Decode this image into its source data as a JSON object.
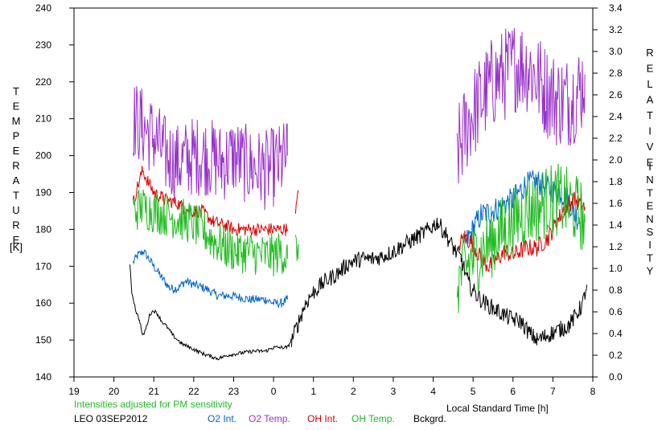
{
  "chart_data": {
    "type": "line",
    "xlabel": "Local Standard Time [h]",
    "x_ticks": [
      "19",
      "20",
      "21",
      "22",
      "23",
      "0",
      "1",
      "2",
      "3",
      "4",
      "5",
      "6",
      "7",
      "8"
    ],
    "x_range_hours": [
      19,
      32
    ],
    "y_left": {
      "label_letters": [
        "T",
        "E",
        "M",
        "P",
        "E",
        "R",
        "A",
        "T",
        "U",
        "R",
        "E"
      ],
      "unit": "[K]",
      "range": [
        140,
        240
      ],
      "ticks": [
        "140",
        "150",
        "160",
        "170",
        "180",
        "190",
        "200",
        "210",
        "220",
        "230",
        "240"
      ]
    },
    "y_right": {
      "label_letters": [
        "R",
        "E",
        "L",
        "A",
        "T",
        "I",
        "V",
        "E"
      ],
      "label_letters_2": [
        "I",
        "N",
        "T",
        "E",
        "N",
        "S",
        "I",
        "T",
        "Y"
      ],
      "range": [
        0.0,
        3.4
      ],
      "ticks": [
        "0.0",
        "0.2",
        "0.4",
        "0.6",
        "0.8",
        "1.0",
        "1.2",
        "1.4",
        "1.6",
        "1.8",
        "2.0",
        "2.2",
        "2.4",
        "2.6",
        "2.8",
        "3.0",
        "3.2",
        "3.4"
      ]
    },
    "note": "Intensities adjusted for PM sensitivity",
    "station": "LEO 03SEP2012",
    "series": [
      {
        "name": "O2 Int.",
        "axis": "temperature",
        "color": "#0066cc",
        "noise": 1.2,
        "points": [
          [
            20.48,
            171
          ],
          [
            20.6,
            173
          ],
          [
            20.75,
            174
          ],
          [
            21.0,
            170
          ],
          [
            21.2,
            167
          ],
          [
            21.4,
            164
          ],
          [
            21.6,
            164
          ],
          [
            21.8,
            166
          ],
          [
            22.0,
            165
          ],
          [
            22.3,
            164
          ],
          [
            22.6,
            162
          ],
          [
            23.0,
            162
          ],
          [
            23.4,
            161
          ],
          [
            23.8,
            161
          ],
          [
            24.0,
            160
          ],
          [
            24.2,
            160
          ],
          [
            24.35,
            161
          ]
        ]
      },
      {
        "name": "O2 Int.",
        "axis": "temperature",
        "color": "#0066cc",
        "noise": 3.5,
        "points": [
          [
            28.8,
            176
          ],
          [
            29.0,
            180
          ],
          [
            29.2,
            184
          ],
          [
            29.5,
            185
          ],
          [
            29.8,
            187
          ],
          [
            30.0,
            188
          ],
          [
            30.3,
            192
          ],
          [
            30.6,
            193
          ],
          [
            30.9,
            191
          ],
          [
            31.2,
            190
          ],
          [
            31.4,
            188
          ],
          [
            31.55,
            184
          ],
          [
            31.7,
            182
          ]
        ]
      },
      {
        "name": "O2 Temp.",
        "axis": "temperature",
        "color": "#9933cc",
        "noise": 11,
        "points": [
          [
            20.48,
            210
          ],
          [
            20.7,
            208
          ],
          [
            21.0,
            205
          ],
          [
            21.3,
            200
          ],
          [
            21.6,
            198
          ],
          [
            22.0,
            200
          ],
          [
            22.3,
            200
          ],
          [
            22.7,
            198
          ],
          [
            23.0,
            200
          ],
          [
            23.4,
            197
          ],
          [
            23.8,
            196
          ],
          [
            24.0,
            197
          ],
          [
            24.2,
            198
          ],
          [
            24.35,
            200
          ]
        ]
      },
      {
        "name": "O2 Temp.",
        "axis": "temperature",
        "color": "#9933cc",
        "noise": 13,
        "points": [
          [
            28.6,
            200
          ],
          [
            28.9,
            210
          ],
          [
            29.2,
            215
          ],
          [
            29.5,
            220
          ],
          [
            29.8,
            222
          ],
          [
            30.1,
            225
          ],
          [
            30.4,
            224
          ],
          [
            30.8,
            218
          ],
          [
            31.1,
            215
          ],
          [
            31.4,
            215
          ],
          [
            31.7,
            218
          ],
          [
            31.8,
            222
          ]
        ]
      },
      {
        "name": "OH Int.",
        "axis": "temperature",
        "color": "#dd0000",
        "noise": 1.8,
        "points": [
          [
            20.48,
            187
          ],
          [
            20.6,
            192
          ],
          [
            20.72,
            196
          ],
          [
            20.85,
            193
          ],
          [
            21.0,
            190
          ],
          [
            21.3,
            188
          ],
          [
            21.6,
            187
          ],
          [
            21.9,
            185
          ],
          [
            22.2,
            185
          ],
          [
            22.5,
            182
          ],
          [
            22.8,
            181
          ],
          [
            23.0,
            180
          ],
          [
            23.3,
            180
          ],
          [
            23.6,
            180
          ],
          [
            23.9,
            180
          ],
          [
            24.1,
            180
          ],
          [
            24.3,
            180
          ],
          [
            24.35,
            180
          ]
        ]
      },
      {
        "name": "OH Int.",
        "axis": "temperature",
        "color": "#dd0000",
        "noise": 0.8,
        "points": [
          [
            24.55,
            185
          ],
          [
            24.6,
            189
          ],
          [
            24.62,
            190
          ]
        ]
      },
      {
        "name": "OH Int.",
        "axis": "temperature",
        "color": "#dd0000",
        "noise": 2.5,
        "points": [
          [
            28.65,
            176
          ],
          [
            28.8,
            178
          ],
          [
            29.0,
            176
          ],
          [
            29.2,
            172
          ],
          [
            29.4,
            170
          ],
          [
            29.6,
            172
          ],
          [
            29.8,
            174
          ],
          [
            30.0,
            173
          ],
          [
            30.3,
            175
          ],
          [
            30.6,
            175
          ],
          [
            30.9,
            178
          ],
          [
            31.1,
            182
          ],
          [
            31.3,
            186
          ],
          [
            31.5,
            188
          ],
          [
            31.7,
            187
          ],
          [
            31.8,
            186
          ]
        ]
      },
      {
        "name": "OH Temp.",
        "axis": "temperature",
        "color": "#22bb22",
        "noise": 6,
        "points": [
          [
            20.48,
            185
          ],
          [
            20.7,
            186
          ],
          [
            21.0,
            185
          ],
          [
            21.3,
            184
          ],
          [
            21.6,
            183
          ],
          [
            21.9,
            182
          ],
          [
            22.2,
            180
          ],
          [
            22.5,
            177
          ],
          [
            22.8,
            175
          ],
          [
            23.1,
            174
          ],
          [
            23.4,
            174
          ],
          [
            23.7,
            173
          ],
          [
            24.0,
            173
          ],
          [
            24.2,
            174
          ],
          [
            24.35,
            172
          ]
        ]
      },
      {
        "name": "OH Temp.",
        "axis": "temperature",
        "color": "#22bb22",
        "noise": 4,
        "points": [
          [
            24.55,
            176
          ],
          [
            24.6,
            174
          ],
          [
            24.62,
            172
          ]
        ]
      },
      {
        "name": "OH Temp.",
        "axis": "temperature",
        "color": "#22bb22",
        "noise": 10,
        "points": [
          [
            28.6,
            165
          ],
          [
            28.8,
            170
          ],
          [
            29.0,
            172
          ],
          [
            29.2,
            174
          ],
          [
            29.4,
            176
          ],
          [
            29.6,
            178
          ],
          [
            29.8,
            180
          ],
          [
            30.0,
            182
          ],
          [
            30.3,
            185
          ],
          [
            30.6,
            186
          ],
          [
            30.9,
            188
          ],
          [
            31.2,
            188
          ],
          [
            31.5,
            186
          ],
          [
            31.7,
            184
          ],
          [
            31.8,
            182
          ]
        ]
      },
      {
        "name": "Bckgrd.",
        "axis": "temperature",
        "color": "#000000",
        "noise": 0.5,
        "points": [
          [
            20.4,
            170
          ],
          [
            20.45,
            163
          ],
          [
            20.55,
            158
          ],
          [
            20.65,
            155
          ],
          [
            20.72,
            151
          ],
          [
            20.8,
            153
          ],
          [
            20.9,
            157
          ],
          [
            21.0,
            158
          ],
          [
            21.1,
            157
          ],
          [
            21.2,
            155
          ],
          [
            21.3,
            154
          ],
          [
            21.5,
            151
          ],
          [
            21.7,
            149
          ],
          [
            21.9,
            148
          ],
          [
            22.1,
            147
          ],
          [
            22.3,
            146
          ],
          [
            22.6,
            145
          ],
          [
            22.9,
            146
          ],
          [
            23.2,
            146.5
          ],
          [
            23.5,
            147
          ],
          [
            23.8,
            147
          ],
          [
            24.0,
            148
          ],
          [
            24.2,
            148
          ],
          [
            24.35,
            148
          ],
          [
            24.45,
            150
          ]
        ]
      },
      {
        "name": "Bckgrd.",
        "axis": "temperature",
        "color": "#000000",
        "noise": 2.3,
        "points": [
          [
            24.45,
            150
          ],
          [
            24.6,
            154
          ],
          [
            24.8,
            160
          ],
          [
            25.0,
            163
          ],
          [
            25.3,
            166
          ],
          [
            25.6,
            168
          ],
          [
            25.9,
            171
          ],
          [
            26.2,
            172
          ],
          [
            26.5,
            172
          ],
          [
            26.8,
            173
          ],
          [
            27.0,
            174
          ],
          [
            27.3,
            176
          ],
          [
            27.6,
            178
          ],
          [
            27.9,
            180
          ],
          [
            28.1,
            182
          ],
          [
            28.3,
            179
          ],
          [
            28.5,
            175
          ],
          [
            28.7,
            172
          ],
          [
            28.9,
            165
          ],
          [
            29.1,
            162
          ],
          [
            29.3,
            160
          ],
          [
            29.6,
            158
          ],
          [
            29.9,
            156
          ],
          [
            30.2,
            155
          ],
          [
            30.4,
            152
          ],
          [
            30.6,
            150
          ],
          [
            30.8,
            151
          ],
          [
            31.0,
            152
          ],
          [
            31.2,
            153
          ],
          [
            31.4,
            154
          ],
          [
            31.6,
            157
          ],
          [
            31.75,
            160
          ],
          [
            31.85,
            165
          ]
        ]
      }
    ],
    "legend": [
      {
        "label": "O2 Int.",
        "color": "#0066cc"
      },
      {
        "label": "O2 Temp.",
        "color": "#9933cc"
      },
      {
        "label": "OH Int.",
        "color": "#dd0000"
      },
      {
        "label": "OH Temp.",
        "color": "#22bb22"
      },
      {
        "label": "Bckgrd.",
        "color": "#000000"
      }
    ],
    "colors": {
      "axis": "#000000",
      "note": "#22bb22"
    },
    "grid": false,
    "legend_placement": "bottom"
  }
}
